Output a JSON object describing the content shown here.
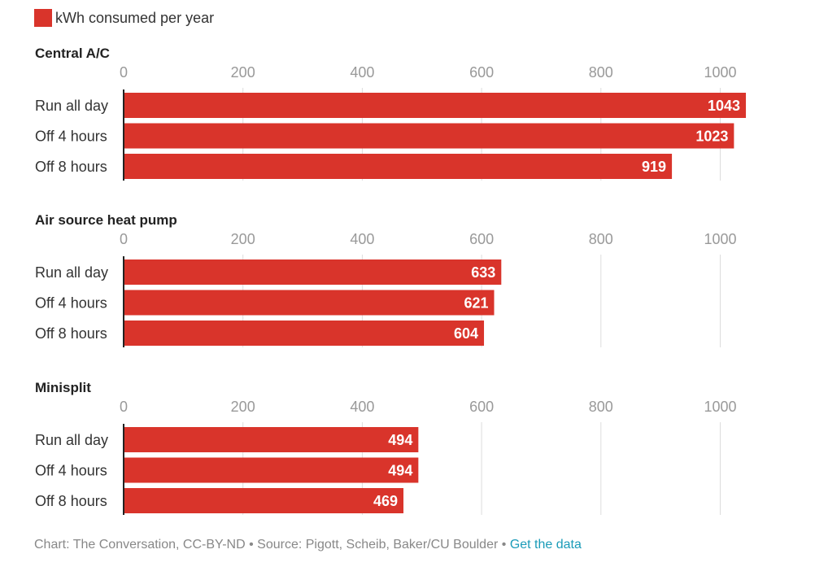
{
  "legend": {
    "label": "kWh consumed per year",
    "color": "#d9342b"
  },
  "footer": {
    "credit": "Chart: The Conversation, CC-BY-ND",
    "separator": " • ",
    "source": "Source: Pigott, Scheib, Baker/CU Boulder",
    "link": "Get the data"
  },
  "colors": {
    "bar": "#d9342b",
    "bar_label": "#ffffff",
    "tick_label": "#999999",
    "grid": "#dddddd",
    "axis": "#222222",
    "text": "#333333",
    "title": "#222222"
  },
  "chart_data": [
    {
      "type": "bar",
      "orientation": "horizontal",
      "title": "Central A/C",
      "categories": [
        "Run all day",
        "Off 4 hours",
        "Off 8 hours"
      ],
      "values": [
        1043,
        1023,
        919
      ],
      "xticks": [
        0,
        200,
        400,
        600,
        800,
        1000
      ],
      "xlim": [
        0,
        1043
      ],
      "grid": true
    },
    {
      "type": "bar",
      "orientation": "horizontal",
      "title": "Air source heat pump",
      "categories": [
        "Run all day",
        "Off 4 hours",
        "Off 8 hours"
      ],
      "values": [
        633,
        621,
        604
      ],
      "xticks": [
        0,
        200,
        400,
        600,
        800,
        1000
      ],
      "xlim": [
        0,
        1043
      ],
      "grid": true
    },
    {
      "type": "bar",
      "orientation": "horizontal",
      "title": "Minisplit",
      "categories": [
        "Run all day",
        "Off 4 hours",
        "Off 8 hours"
      ],
      "values": [
        494,
        494,
        469
      ],
      "xticks": [
        0,
        200,
        400,
        600,
        800,
        1000
      ],
      "xlim": [
        0,
        1043
      ],
      "grid": true
    }
  ]
}
